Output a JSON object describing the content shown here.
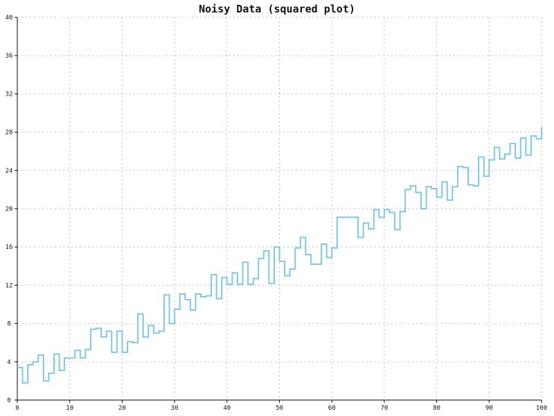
{
  "chart_data": {
    "type": "line",
    "step": true,
    "title": "Noisy Data (squared plot)",
    "xlabel": "",
    "ylabel": "",
    "xlim": [
      0,
      100
    ],
    "ylim": [
      0,
      40
    ],
    "xticks": [
      0,
      10,
      20,
      30,
      40,
      50,
      60,
      70,
      80,
      90,
      100
    ],
    "yticks": [
      0,
      4,
      8,
      12,
      16,
      20,
      24,
      28,
      32,
      36,
      40
    ],
    "grid": true,
    "series_color": "#7ec8e0",
    "x": [
      0,
      1,
      2,
      3,
      4,
      5,
      6,
      7,
      8,
      9,
      10,
      11,
      12,
      13,
      14,
      15,
      16,
      17,
      18,
      19,
      20,
      21,
      22,
      23,
      24,
      25,
      26,
      27,
      28,
      29,
      30,
      31,
      32,
      33,
      34,
      35,
      36,
      37,
      38,
      39,
      40,
      41,
      42,
      43,
      44,
      45,
      46,
      47,
      48,
      49,
      50,
      51,
      52,
      53,
      54,
      55,
      56,
      57,
      58,
      59,
      60,
      61,
      62,
      63,
      64,
      65,
      66,
      67,
      68,
      69,
      70,
      71,
      72,
      73,
      74,
      75,
      76,
      77,
      78,
      79,
      80,
      81,
      82,
      83,
      84,
      85,
      86,
      87,
      88,
      89,
      90,
      91,
      92,
      93,
      94,
      95,
      96,
      97,
      98,
      99
    ],
    "y": [
      3.4,
      1.8,
      3.7,
      4.0,
      4.7,
      2.0,
      2.8,
      4.8,
      3.1,
      4.4,
      4.4,
      5.2,
      4.4,
      5.3,
      7.4,
      7.5,
      6.6,
      7.2,
      5.0,
      7.2,
      5.0,
      6.1,
      6.0,
      9.0,
      6.6,
      7.8,
      7.0,
      7.2,
      11.0,
      8.0,
      9.5,
      11.1,
      10.5,
      9.4,
      11.1,
      10.8,
      10.9,
      13.1,
      10.6,
      12.8,
      12.1,
      13.3,
      12.1,
      14.4,
      12.1,
      12.7,
      14.8,
      15.6,
      12.2,
      16.0,
      14.5,
      13.0,
      13.7,
      15.9,
      17.0,
      15.2,
      14.2,
      14.2,
      16.3,
      14.9,
      15.9,
      19.1,
      19.1,
      19.1,
      19.1,
      17.0,
      18.5,
      17.9,
      19.9,
      19.1,
      19.9,
      19.6,
      17.8,
      19.7,
      22.0,
      22.4,
      21.7,
      20.0,
      22.3,
      22.1,
      21.2,
      22.8,
      20.9,
      22.3,
      24.4,
      24.3,
      22.5,
      22.4,
      25.4,
      23.4,
      25.1,
      26.4,
      25.2,
      25.7,
      26.8,
      25.3,
      27.4,
      25.6,
      27.6,
      27.3
    ],
    "last_point": [
      100,
      28.5
    ]
  }
}
